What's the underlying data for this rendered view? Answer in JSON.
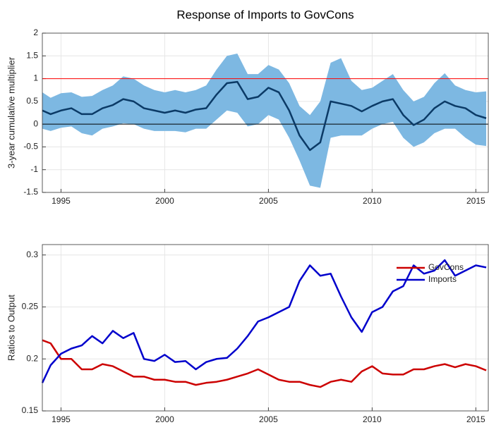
{
  "chart_data": [
    {
      "type": "line",
      "title": "Response of Imports to GovCons",
      "y_label": "3-year cumulative multiplier",
      "x": [
        1994.1,
        1994.5,
        1995,
        1995.5,
        1996,
        1996.5,
        1997,
        1997.5,
        1998,
        1998.5,
        1999,
        1999.5,
        2000,
        2000.5,
        2001,
        2001.5,
        2002,
        2002.5,
        2003,
        2003.5,
        2004,
        2004.5,
        2005,
        2005.5,
        2006,
        2006.5,
        2007,
        2007.5,
        2008,
        2008.5,
        2009,
        2009.5,
        2010,
        2010.5,
        2011,
        2011.5,
        2012,
        2012.5,
        2013,
        2013.5,
        2014,
        2014.5,
        2015,
        2015.5
      ],
      "band": {
        "color": "#7db8e2",
        "upper": [
          0.7,
          0.58,
          0.68,
          0.7,
          0.6,
          0.62,
          0.75,
          0.85,
          1.05,
          1.0,
          0.85,
          0.75,
          0.7,
          0.75,
          0.7,
          0.75,
          0.85,
          1.2,
          1.5,
          1.55,
          1.1,
          1.1,
          1.3,
          1.2,
          0.9,
          0.4,
          0.2,
          0.5,
          1.35,
          1.45,
          0.95,
          0.75,
          0.8,
          0.95,
          1.1,
          0.75,
          0.5,
          0.6,
          0.9,
          1.12,
          0.85,
          0.75,
          0.7,
          0.72
        ],
        "lower": [
          -0.1,
          -0.15,
          -0.08,
          -0.05,
          -0.2,
          -0.25,
          -0.1,
          -0.05,
          0.02,
          0.0,
          -0.1,
          -0.15,
          -0.15,
          -0.15,
          -0.18,
          -0.1,
          -0.1,
          0.1,
          0.3,
          0.25,
          -0.05,
          0.0,
          0.2,
          0.1,
          -0.3,
          -0.8,
          -1.35,
          -1.4,
          -0.3,
          -0.25,
          -0.25,
          -0.25,
          -0.1,
          0.0,
          0.05,
          -0.3,
          -0.5,
          -0.4,
          -0.2,
          -0.1,
          -0.1,
          -0.3,
          -0.45,
          -0.48
        ]
      },
      "series": [
        {
          "color": "#0b3a66",
          "values": [
            0.3,
            0.22,
            0.3,
            0.35,
            0.22,
            0.22,
            0.35,
            0.42,
            0.55,
            0.5,
            0.35,
            0.3,
            0.25,
            0.3,
            0.25,
            0.32,
            0.35,
            0.65,
            0.9,
            0.93,
            0.55,
            0.6,
            0.8,
            0.7,
            0.3,
            -0.25,
            -0.57,
            -0.4,
            0.5,
            0.45,
            0.4,
            0.28,
            0.4,
            0.5,
            0.55,
            0.2,
            -0.02,
            0.1,
            0.35,
            0.5,
            0.4,
            0.35,
            0.2,
            0.13
          ]
        }
      ],
      "hlines": [
        {
          "value": 1,
          "color": "#ff0000"
        },
        {
          "value": 0,
          "color": "#000000"
        }
      ],
      "xlim": [
        1994.1,
        2015.6
      ],
      "xticks": [
        1995,
        2000,
        2005,
        2010,
        2015
      ],
      "ylim": [
        -1.5,
        2
      ],
      "yticks": [
        -1.5,
        -1,
        -0.5,
        0,
        0.5,
        1,
        1.5,
        2
      ],
      "grid": true
    },
    {
      "type": "line",
      "y_label": "Ratios to Output",
      "legend": "northeast",
      "x": [
        1994.1,
        1994.5,
        1995,
        1995.5,
        1996,
        1996.5,
        1997,
        1997.5,
        1998,
        1998.5,
        1999,
        1999.5,
        2000,
        2000.5,
        2001,
        2001.5,
        2002,
        2002.5,
        2003,
        2003.5,
        2004,
        2004.5,
        2005,
        2005.5,
        2006,
        2006.5,
        2007,
        2007.5,
        2008,
        2008.5,
        2009,
        2009.5,
        2010,
        2010.5,
        2011,
        2011.5,
        2012,
        2012.5,
        2013,
        2013.5,
        2014,
        2014.5,
        2015,
        2015.5
      ],
      "series": [
        {
          "name": "GovCons",
          "color": "#cc0000",
          "values": [
            0.218,
            0.215,
            0.2,
            0.2,
            0.19,
            0.19,
            0.195,
            0.193,
            0.188,
            0.183,
            0.183,
            0.18,
            0.18,
            0.178,
            0.178,
            0.175,
            0.177,
            0.178,
            0.18,
            0.183,
            0.186,
            0.19,
            0.185,
            0.18,
            0.178,
            0.178,
            0.175,
            0.173,
            0.178,
            0.18,
            0.178,
            0.188,
            0.193,
            0.186,
            0.185,
            0.185,
            0.19,
            0.19,
            0.193,
            0.195,
            0.192,
            0.195,
            0.193,
            0.189
          ]
        },
        {
          "name": "Imports",
          "color": "#0000cc",
          "values": [
            0.177,
            0.194,
            0.205,
            0.21,
            0.213,
            0.222,
            0.215,
            0.227,
            0.22,
            0.225,
            0.2,
            0.198,
            0.204,
            0.197,
            0.198,
            0.19,
            0.197,
            0.2,
            0.201,
            0.21,
            0.222,
            0.236,
            0.24,
            0.245,
            0.25,
            0.275,
            0.29,
            0.28,
            0.282,
            0.26,
            0.24,
            0.226,
            0.245,
            0.25,
            0.265,
            0.27,
            0.29,
            0.282,
            0.285,
            0.295,
            0.28,
            0.285,
            0.29,
            0.288
          ]
        }
      ],
      "xlim": [
        1994.1,
        2015.6
      ],
      "xticks": [
        1995,
        2000,
        2005,
        2010,
        2015
      ],
      "ylim": [
        0.15,
        0.31
      ],
      "yticks": [
        0.15,
        0.2,
        0.25,
        0.3
      ],
      "grid": true
    }
  ]
}
